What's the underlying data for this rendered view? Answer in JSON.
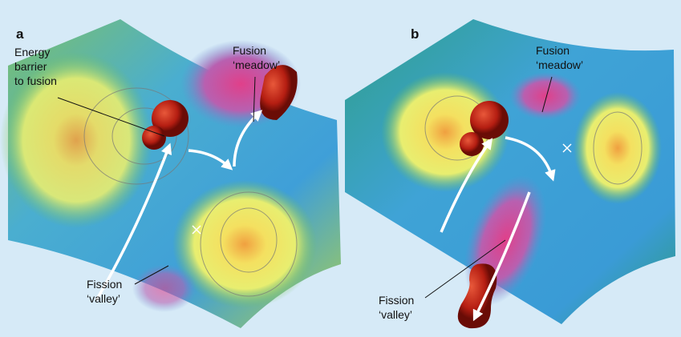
{
  "panels": [
    {
      "label": "a",
      "annotations": [
        {
          "lines": [
            "Energy",
            "barrier",
            "to fusion"
          ]
        },
        {
          "lines": [
            "Fusion",
            "‘meadow’"
          ]
        },
        {
          "lines": [
            "Fission",
            "‘valley’"
          ]
        }
      ]
    },
    {
      "label": "b",
      "annotations": [
        {
          "lines": [
            "Fusion",
            "‘meadow’"
          ]
        },
        {
          "lines": [
            "Fission",
            "‘valley’"
          ]
        }
      ]
    }
  ]
}
